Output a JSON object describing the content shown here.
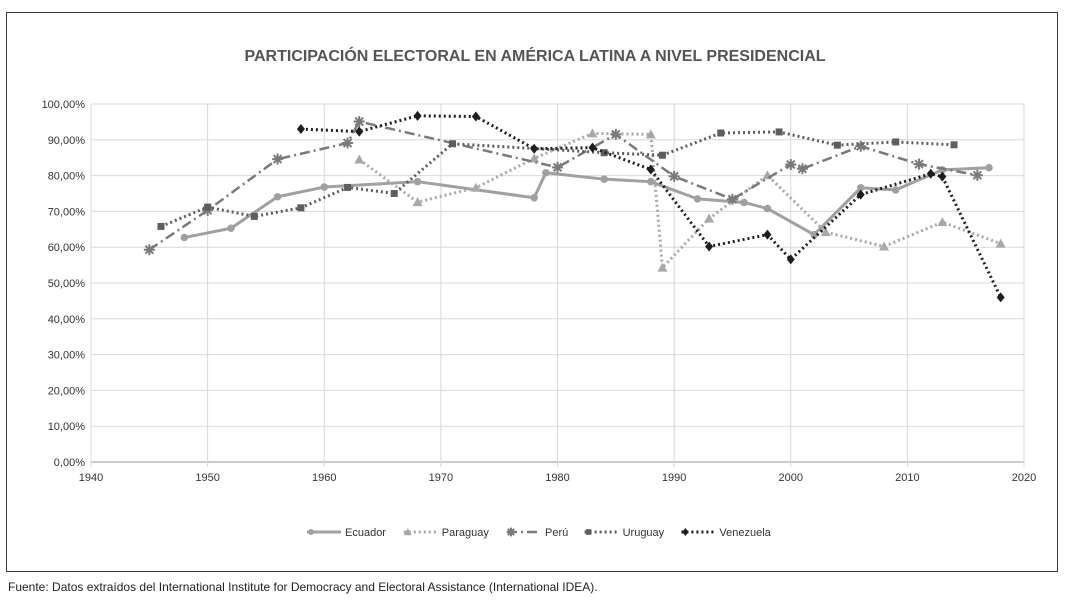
{
  "source_note": "Fuente: Datos extraídos del International Institute for Democracy and Electoral Assistance (International IDEA).",
  "chart_data": {
    "type": "line",
    "title": "PARTICIPACIÓN ELECTORAL EN AMÉRICA LATINA A NIVEL PRESIDENCIAL",
    "xlabel": "",
    "ylabel": "",
    "xlim": [
      1940,
      2020
    ],
    "ylim": [
      0,
      100
    ],
    "x_ticks": [
      "1940",
      "1950",
      "1960",
      "1970",
      "1980",
      "1990",
      "2000",
      "2010",
      "2020"
    ],
    "y_ticks": [
      "0,00%",
      "10,00%",
      "20,00%",
      "30,00%",
      "40,00%",
      "50,00%",
      "60,00%",
      "70,00%",
      "80,00%",
      "90,00%",
      "100,00%"
    ],
    "grid": true,
    "legend_position": "bottom",
    "series": [
      {
        "name": "Ecuador",
        "color": "#a0a0a0",
        "marker": "circle",
        "dash": "solid",
        "points": [
          [
            1948,
            62.7
          ],
          [
            1952,
            65.3
          ],
          [
            1956,
            74.1
          ],
          [
            1960,
            76.8
          ],
          [
            1968,
            78.3
          ],
          [
            1978,
            73.8
          ],
          [
            1979,
            80.8
          ],
          [
            1984,
            79.0
          ],
          [
            1988,
            78.3
          ],
          [
            1992,
            73.5
          ],
          [
            1996,
            72.5
          ],
          [
            1998,
            70.8
          ],
          [
            2002,
            63.5
          ],
          [
            2006,
            76.6
          ],
          [
            2009,
            76.0
          ],
          [
            2013,
            81.6
          ],
          [
            2017,
            82.2
          ]
        ]
      },
      {
        "name": "Paraguay",
        "color": "#a8a8a8",
        "marker": "triangle",
        "dash": "dotted",
        "points": [
          [
            1963,
            84.5
          ],
          [
            1968,
            72.6
          ],
          [
            1973,
            76.6
          ],
          [
            1978,
            84.8
          ],
          [
            1983,
            91.8
          ],
          [
            1988,
            91.5
          ],
          [
            1989,
            54.3
          ],
          [
            1993,
            68.0
          ],
          [
            1998,
            80.1
          ],
          [
            2003,
            64.2
          ],
          [
            2008,
            60.2
          ],
          [
            2013,
            67.0
          ],
          [
            2018,
            61.0
          ]
        ]
      },
      {
        "name": "Perú",
        "color": "#7a7a7a",
        "marker": "star",
        "dash": "dashdot",
        "points": [
          [
            1945,
            59.3
          ],
          [
            1950,
            70.3
          ],
          [
            1956,
            84.6
          ],
          [
            1962,
            89.1
          ],
          [
            1963,
            95.1
          ],
          [
            1980,
            82.3
          ],
          [
            1985,
            91.5
          ],
          [
            1990,
            79.8
          ],
          [
            1995,
            73.4
          ],
          [
            2000,
            83.1
          ],
          [
            2001,
            81.9
          ],
          [
            2006,
            88.2
          ],
          [
            2011,
            83.2
          ],
          [
            2016,
            80.1
          ]
        ]
      },
      {
        "name": "Uruguay",
        "color": "#5e5e5e",
        "marker": "square",
        "dash": "dotted",
        "points": [
          [
            1946,
            65.8
          ],
          [
            1950,
            71.2
          ],
          [
            1954,
            68.6
          ],
          [
            1958,
            71.0
          ],
          [
            1962,
            76.7
          ],
          [
            1966,
            75.0
          ],
          [
            1971,
            88.9
          ],
          [
            1984,
            86.4
          ],
          [
            1989,
            85.7
          ],
          [
            1994,
            91.9
          ],
          [
            1999,
            92.2
          ],
          [
            2004,
            88.5
          ],
          [
            2009,
            89.4
          ],
          [
            2014,
            88.6
          ]
        ]
      },
      {
        "name": "Venezuela",
        "color": "#1e1e1e",
        "marker": "diamond",
        "dash": "dotted",
        "points": [
          [
            1958,
            93.0
          ],
          [
            1963,
            92.3
          ],
          [
            1968,
            96.7
          ],
          [
            1973,
            96.5
          ],
          [
            1978,
            87.5
          ],
          [
            1983,
            87.8
          ],
          [
            1988,
            81.7
          ],
          [
            1993,
            60.2
          ],
          [
            1998,
            63.5
          ],
          [
            2000,
            56.6
          ],
          [
            2006,
            74.7
          ],
          [
            2012,
            80.5
          ],
          [
            2013,
            79.7
          ],
          [
            2018,
            46.0
          ]
        ]
      }
    ]
  }
}
